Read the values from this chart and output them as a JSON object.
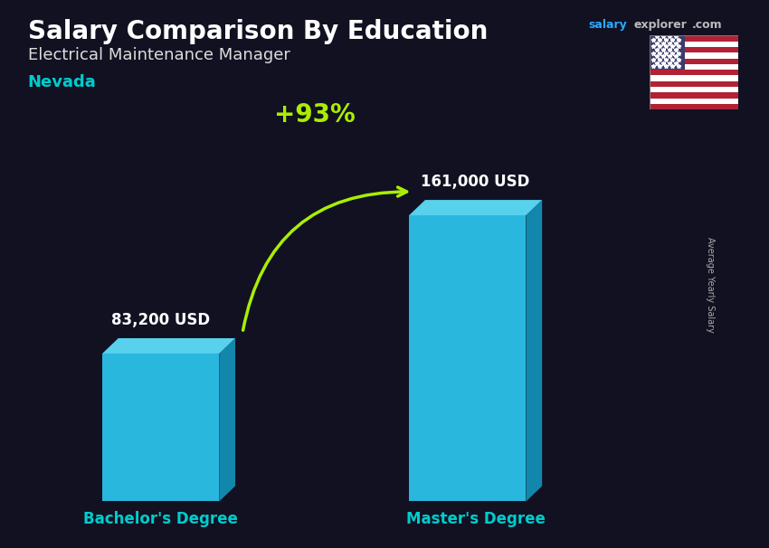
{
  "title": "Salary Comparison By Education",
  "subtitle": "Electrical Maintenance Manager",
  "location": "Nevada",
  "categories": [
    "Bachelor's Degree",
    "Master's Degree"
  ],
  "values": [
    83200,
    161000
  ],
  "value_labels": [
    "83,200 USD",
    "161,000 USD"
  ],
  "pct_change": "+93%",
  "ylabel": "Average Yearly Salary",
  "bar_face_color": "#2BC5EE",
  "bar_side_color": "#1490B8",
  "bar_top_color": "#5BD8F5",
  "pct_color": "#AAEE00",
  "title_color": "#FFFFFF",
  "subtitle_color": "#DDDDDD",
  "location_color": "#00CCCC",
  "salary_color": "#29AAFF",
  "value_label_color": "#FFFFFF",
  "xlabel_color": "#00CCCC",
  "bg_color": "#111122",
  "ylabel_color": "#AAAAAA",
  "salaryexplorer_salary": "salary",
  "salaryexplorer_explorer": "explorer",
  "salaryexplorer_com": ".com"
}
